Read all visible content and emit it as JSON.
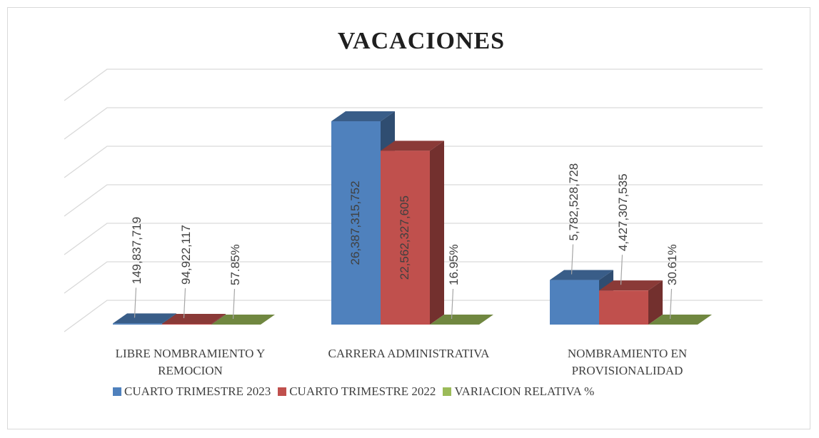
{
  "chart_data": {
    "type": "bar3d",
    "title": "VACACIONES",
    "categories": [
      "LIBRE NOMBRAMIENTO Y REMOCION",
      "CARRERA ADMINISTRATIVA",
      "NOMBRAMIENTO EN PROVISIONALIDAD"
    ],
    "series": [
      {
        "name": "CUARTO TRIMESTRE 2023",
        "color": "#4f81bd",
        "values": [
          149837719,
          26387315752,
          5782528728
        ],
        "value_labels": [
          "149,837,719",
          "26,387,315,752",
          "5,782,528,728"
        ]
      },
      {
        "name": "CUARTO TRIMESTRE 2022",
        "color": "#c0504d",
        "values": [
          94922117,
          22562327605,
          4427307535
        ],
        "value_labels": [
          "94,922,117",
          "22,562,327,605",
          "4,427,307,535"
        ]
      },
      {
        "name": "VARIACION RELATIVA %",
        "color": "#9bbb59",
        "values": [
          57.85,
          16.95,
          30.61
        ],
        "value_labels": [
          "57.85%",
          "16.95%",
          "30.61%"
        ]
      }
    ],
    "ylim": [
      0,
      30000000000
    ],
    "yticks": [
      0,
      5000000000,
      10000000000,
      15000000000,
      20000000000,
      25000000000,
      30000000000
    ],
    "grid": true,
    "legend": "bottom"
  }
}
